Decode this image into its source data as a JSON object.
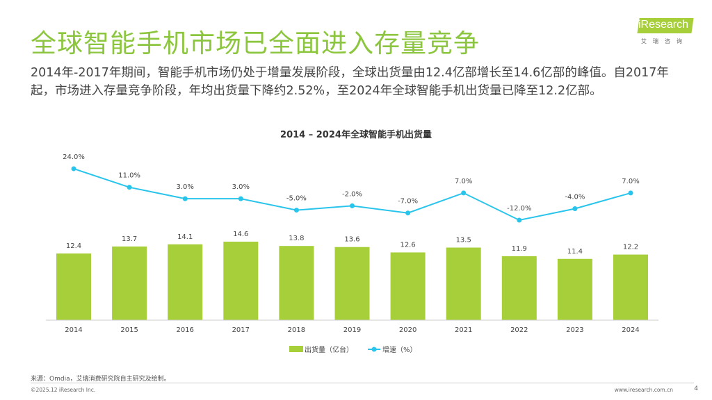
{
  "title": "全球智能手机市场已全面进入存量竞争",
  "subtitle": "2014年-2017年期间，智能手机市场仍处于增量发展阶段，全球出货量由12.4亿部增长至14.6亿部的峰值。自2017年起，市场进入存量竞争阶段，年均出货量下降约2.52%，至2024年全球智能手机出货量已降至12.2亿部。",
  "logo": {
    "text": "iResearch",
    "cn": "艾瑞咨询"
  },
  "chart_data": {
    "type": "bar+line",
    "title": "2014 – 2024年全球智能手机出货量",
    "categories": [
      "2014",
      "2015",
      "2016",
      "2017",
      "2018",
      "2019",
      "2020",
      "2021",
      "2022",
      "2023",
      "2024"
    ],
    "series": [
      {
        "name": "出货量（亿台）",
        "type": "bar",
        "color": "#a6cf39",
        "values": [
          12.4,
          13.7,
          14.1,
          14.6,
          13.8,
          13.6,
          12.6,
          13.5,
          11.9,
          11.4,
          12.2
        ],
        "labels": [
          "12.4",
          "13.7",
          "14.1",
          "14.6",
          "13.8",
          "13.6",
          "12.6",
          "13.5",
          "11.9",
          "11.4",
          "12.2"
        ]
      },
      {
        "name": "增速（%）",
        "type": "line",
        "color": "#29c4ec",
        "values": [
          24,
          11,
          3,
          3,
          -5,
          -2,
          -7,
          7,
          -12,
          -4,
          7
        ],
        "labels": [
          "24.0%",
          "11.0%",
          "3.0%",
          "3.0%",
          "-5.0%",
          "-2.0%",
          "-7.0%",
          "7.0%",
          "-12.0%",
          "-4.0%",
          "7.0%"
        ]
      }
    ],
    "legend": "bottom",
    "grid": false
  },
  "footer": {
    "source": "来源：Omdia，艾瑞消费研究院自主研究及绘制。",
    "copyright": "©2025.12 iResearch Inc.",
    "url": "www.iresearch.com.cn",
    "page": "4"
  }
}
